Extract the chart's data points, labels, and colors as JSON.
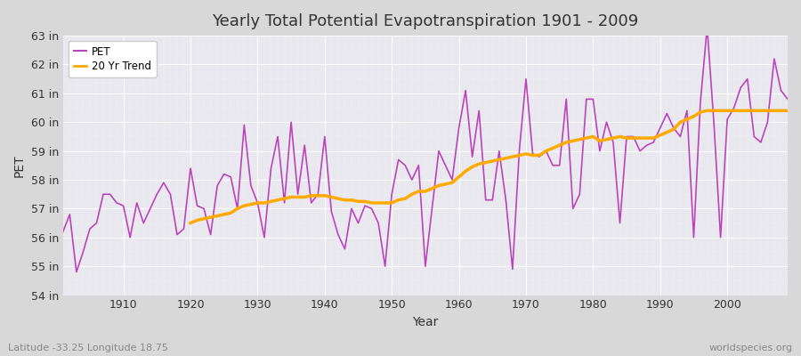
{
  "title": "Yearly Total Potential Evapotranspiration 1901 - 2009",
  "xlabel": "Year",
  "ylabel": "PET",
  "bottom_left_label": "Latitude -33.25 Longitude 18.75",
  "bottom_right_label": "worldspecies.org",
  "pet_color": "#bb44bb",
  "trend_color": "#ffaa00",
  "fig_background": "#d8d8d8",
  "plot_background": "#e8e8ee",
  "grid_color": "#ffffff",
  "ylim": [
    54,
    63
  ],
  "yticks": [
    54,
    55,
    56,
    57,
    58,
    59,
    60,
    61,
    62,
    63
  ],
  "xticks": [
    1910,
    1920,
    1930,
    1940,
    1950,
    1960,
    1970,
    1980,
    1990,
    2000
  ],
  "years": [
    1901,
    1902,
    1903,
    1904,
    1905,
    1906,
    1907,
    1908,
    1909,
    1910,
    1911,
    1912,
    1913,
    1914,
    1915,
    1916,
    1917,
    1918,
    1919,
    1920,
    1921,
    1922,
    1923,
    1924,
    1925,
    1926,
    1927,
    1928,
    1929,
    1930,
    1931,
    1932,
    1933,
    1934,
    1935,
    1936,
    1937,
    1938,
    1939,
    1940,
    1941,
    1942,
    1943,
    1944,
    1945,
    1946,
    1947,
    1948,
    1949,
    1950,
    1951,
    1952,
    1953,
    1954,
    1955,
    1956,
    1957,
    1958,
    1959,
    1960,
    1961,
    1962,
    1963,
    1964,
    1965,
    1966,
    1967,
    1968,
    1969,
    1970,
    1971,
    1972,
    1973,
    1974,
    1975,
    1976,
    1977,
    1978,
    1979,
    1980,
    1981,
    1982,
    1983,
    1984,
    1985,
    1986,
    1987,
    1988,
    1989,
    1990,
    1991,
    1992,
    1993,
    1994,
    1995,
    1996,
    1997,
    1998,
    1999,
    2000,
    2001,
    2002,
    2003,
    2004,
    2005,
    2006,
    2007,
    2008,
    2009
  ],
  "pet_values": [
    56.2,
    56.8,
    54.8,
    55.5,
    56.3,
    56.5,
    57.5,
    57.5,
    57.2,
    57.1,
    56.0,
    57.2,
    56.5,
    57.0,
    57.5,
    57.9,
    57.5,
    56.1,
    56.3,
    58.4,
    57.1,
    57.0,
    56.1,
    57.8,
    58.2,
    58.1,
    57.0,
    59.9,
    57.8,
    57.2,
    56.0,
    58.4,
    59.5,
    57.2,
    60.0,
    57.5,
    59.2,
    57.2,
    57.5,
    59.5,
    56.9,
    56.1,
    55.6,
    57.0,
    56.5,
    57.1,
    57.0,
    56.5,
    55.0,
    57.5,
    58.7,
    58.5,
    58.0,
    58.5,
    55.0,
    57.0,
    59.0,
    58.5,
    58.0,
    59.8,
    61.1,
    58.8,
    60.4,
    57.3,
    57.3,
    59.0,
    57.3,
    54.9,
    59.0,
    61.5,
    58.9,
    58.8,
    59.0,
    58.5,
    58.5,
    60.8,
    57.0,
    57.5,
    60.8,
    60.8,
    59.0,
    60.0,
    59.3,
    56.5,
    59.5,
    59.5,
    59.0,
    59.2,
    59.3,
    59.8,
    60.3,
    59.8,
    59.5,
    60.4,
    56.0,
    60.7,
    63.3,
    60.0,
    56.0,
    60.1,
    60.5,
    61.2,
    61.5,
    59.5,
    59.3,
    60.0,
    62.2,
    61.1,
    60.8
  ],
  "trend_values": [
    null,
    null,
    null,
    null,
    null,
    null,
    null,
    null,
    null,
    null,
    null,
    null,
    null,
    null,
    null,
    null,
    null,
    null,
    null,
    56.5,
    56.6,
    56.65,
    56.7,
    56.75,
    56.8,
    56.85,
    57.0,
    57.1,
    57.15,
    57.2,
    57.2,
    57.25,
    57.3,
    57.35,
    57.4,
    57.4,
    57.4,
    57.45,
    57.45,
    57.45,
    57.4,
    57.35,
    57.3,
    57.3,
    57.25,
    57.25,
    57.2,
    57.2,
    57.2,
    57.2,
    57.3,
    57.35,
    57.5,
    57.6,
    57.6,
    57.7,
    57.8,
    57.85,
    57.9,
    58.1,
    58.3,
    58.45,
    58.55,
    58.6,
    58.65,
    58.7,
    58.75,
    58.8,
    58.85,
    58.9,
    58.85,
    58.85,
    59.0,
    59.1,
    59.2,
    59.3,
    59.35,
    59.4,
    59.45,
    59.5,
    59.35,
    59.4,
    59.45,
    59.5,
    59.45,
    59.45,
    59.45,
    59.45,
    59.45,
    59.55,
    59.65,
    59.75,
    60.0,
    60.1,
    60.2,
    60.35,
    60.4,
    60.4,
    60.4,
    60.4,
    60.4,
    60.4,
    60.4,
    60.4,
    60.4,
    60.4,
    60.4,
    60.4,
    60.4
  ]
}
